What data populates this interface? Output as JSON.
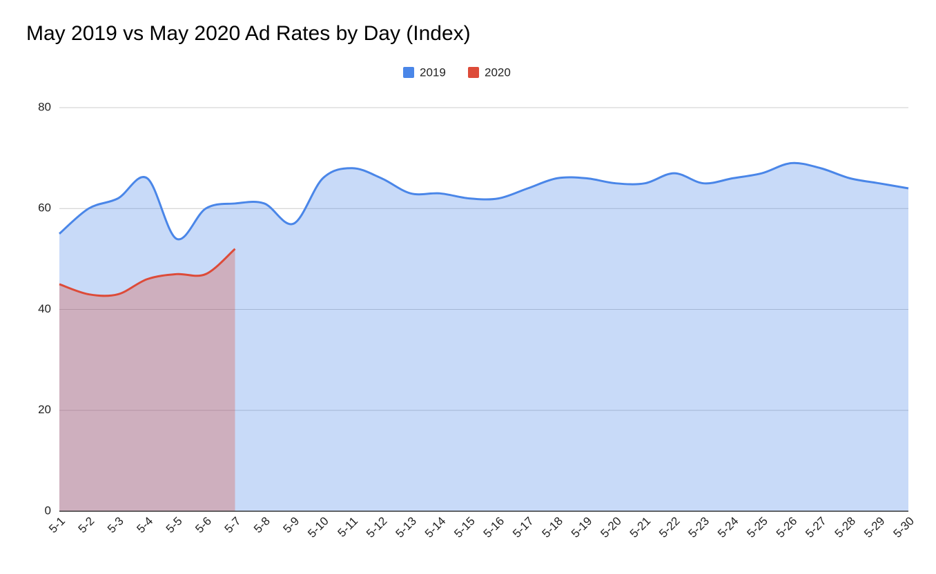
{
  "chart_data": {
    "type": "area",
    "title": "May 2019 vs May 2020 Ad Rates by Day (Index)",
    "categories": [
      "5-1",
      "5-2",
      "5-3",
      "5-4",
      "5-5",
      "5-6",
      "5-7",
      "5-8",
      "5-9",
      "5-10",
      "5-11",
      "5-12",
      "5-13",
      "5-14",
      "5-15",
      "5-16",
      "5-17",
      "5-18",
      "5-19",
      "5-20",
      "5-21",
      "5-22",
      "5-23",
      "5-24",
      "5-25",
      "5-26",
      "5-27",
      "5-28",
      "5-29",
      "5-30"
    ],
    "series": [
      {
        "name": "2019",
        "color": "#4a86e8",
        "values": [
          55,
          60,
          62,
          66,
          54,
          60,
          61,
          61,
          57,
          66,
          68,
          66,
          63,
          63,
          62,
          62,
          64,
          66,
          66,
          65,
          65,
          67,
          65,
          66,
          67,
          69,
          68,
          66,
          65,
          64
        ]
      },
      {
        "name": "2020",
        "color": "#dd4b39",
        "values": [
          45,
          43,
          43,
          46,
          47,
          47,
          52,
          null,
          null,
          null,
          null,
          null,
          null,
          null,
          null,
          null,
          null,
          null,
          null,
          null,
          null,
          null,
          null,
          null,
          null,
          null,
          null,
          null,
          null,
          null
        ]
      }
    ],
    "ylim": [
      0,
      80
    ],
    "yticks": [
      0,
      20,
      40,
      60,
      80
    ],
    "grid": true,
    "smooth": true,
    "legend": "top"
  }
}
